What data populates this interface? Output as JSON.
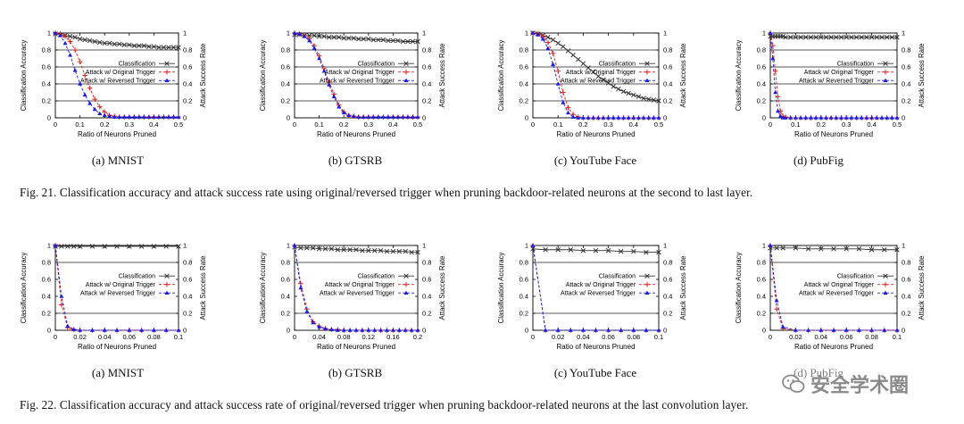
{
  "figures": [
    {
      "caption": "Fig. 21.  Classification accuracy and attack success rate using original/reversed trigger when pruning backdoor-related neurons at the second to last layer.",
      "subcaptions": [
        "(a)  MNIST",
        "(b)  GTSRB",
        "(c)  YouTube Face",
        "(d)  PubFig"
      ]
    },
    {
      "caption": "Fig. 22.  Classification accuracy and attack success rate of original/reversed trigger when pruning backdoor-related neurons at the last convolution layer.",
      "subcaptions": [
        "(a)  MNIST",
        "(b)  GTSRB",
        "(c)  YouTube Face",
        "(d)  PubFig"
      ]
    }
  ],
  "watermark": "安全学术圈",
  "colors": {
    "classification": "#333333",
    "attack_original": "#e02020",
    "attack_reversed": "#1a1ae0",
    "axis": "#000000",
    "grid": "#222222"
  },
  "chart_data": [
    {
      "type": "line",
      "xlabel": "Ratio of Neurons Pruned",
      "ylabel": "Classification Accuracy",
      "y2label": "Attack Success Rate",
      "xlim": [
        0,
        0.5
      ],
      "ylim": [
        0,
        1
      ],
      "xticks": [
        "0",
        "0.1",
        "0.2",
        "0.3",
        "0.4",
        "0.5"
      ],
      "yticks": [
        "0",
        "0.2",
        "0.4",
        "0.6",
        "0.8",
        "1"
      ],
      "grid_y": [
        0.2,
        0.4,
        0.6,
        0.8
      ],
      "legend_position": "right",
      "x": [
        0,
        0.02,
        0.04,
        0.06,
        0.08,
        0.1,
        0.12,
        0.14,
        0.16,
        0.18,
        0.2,
        0.22,
        0.24,
        0.26,
        0.28,
        0.3,
        0.32,
        0.34,
        0.36,
        0.38,
        0.4,
        0.42,
        0.44,
        0.46,
        0.48,
        0.5
      ],
      "series": [
        {
          "name": "Classification",
          "values": [
            0.99,
            0.98,
            0.97,
            0.96,
            0.95,
            0.93,
            0.92,
            0.91,
            0.9,
            0.89,
            0.88,
            0.88,
            0.87,
            0.87,
            0.86,
            0.86,
            0.85,
            0.85,
            0.85,
            0.84,
            0.84,
            0.83,
            0.83,
            0.83,
            0.83,
            0.83
          ]
        },
        {
          "name": "Attack w/ Original Trigger",
          "values": [
            1.0,
            0.99,
            0.96,
            0.9,
            0.8,
            0.66,
            0.5,
            0.35,
            0.22,
            0.13,
            0.07,
            0.03,
            0.02,
            0.01,
            0.01,
            0.01,
            0.01,
            0.01,
            0.01,
            0.01,
            0.01,
            0.01,
            0.01,
            0.01,
            0.01,
            0.01
          ]
        },
        {
          "name": "Attack w/ Reversed Trigger",
          "values": [
            1.0,
            0.97,
            0.88,
            0.74,
            0.56,
            0.4,
            0.27,
            0.17,
            0.1,
            0.05,
            0.03,
            0.02,
            0.01,
            0.01,
            0.01,
            0.01,
            0.01,
            0.01,
            0.01,
            0.01,
            0.01,
            0.01,
            0.01,
            0.01,
            0.01,
            0.01
          ]
        }
      ]
    },
    {
      "type": "line",
      "xlabel": "Ratio of Neurons Pruned",
      "ylabel": "Classification Accuracy",
      "y2label": "Attack Success Rate",
      "xlim": [
        0,
        0.5
      ],
      "ylim": [
        0,
        1
      ],
      "xticks": [
        "0",
        "0.1",
        "0.2",
        "0.3",
        "0.4",
        "0.5"
      ],
      "yticks": [
        "0",
        "0.2",
        "0.4",
        "0.6",
        "0.8",
        "1"
      ],
      "grid_y": [
        0.2,
        0.4,
        0.6,
        0.8
      ],
      "legend_position": "right",
      "x": [
        0,
        0.02,
        0.04,
        0.06,
        0.08,
        0.1,
        0.12,
        0.14,
        0.16,
        0.18,
        0.2,
        0.22,
        0.24,
        0.26,
        0.28,
        0.3,
        0.32,
        0.34,
        0.36,
        0.38,
        0.4,
        0.42,
        0.44,
        0.46,
        0.48,
        0.5
      ],
      "series": [
        {
          "name": "Classification",
          "values": [
            0.98,
            0.98,
            0.97,
            0.97,
            0.97,
            0.96,
            0.96,
            0.95,
            0.95,
            0.95,
            0.94,
            0.94,
            0.94,
            0.93,
            0.93,
            0.93,
            0.92,
            0.92,
            0.92,
            0.91,
            0.91,
            0.91,
            0.9,
            0.9,
            0.9,
            0.9
          ]
        },
        {
          "name": "Attack w/ Original Trigger",
          "values": [
            1.0,
            0.99,
            0.97,
            0.93,
            0.85,
            0.73,
            0.58,
            0.42,
            0.28,
            0.15,
            0.07,
            0.03,
            0.02,
            0.01,
            0.01,
            0.01,
            0.01,
            0.01,
            0.01,
            0.01,
            0.01,
            0.01,
            0.01,
            0.01,
            0.01,
            0.01
          ]
        },
        {
          "name": "Attack w/ Reversed Trigger",
          "values": [
            1.0,
            0.99,
            0.96,
            0.91,
            0.82,
            0.7,
            0.55,
            0.39,
            0.25,
            0.13,
            0.06,
            0.03,
            0.02,
            0.01,
            0.01,
            0.01,
            0.01,
            0.01,
            0.01,
            0.01,
            0.01,
            0.01,
            0.01,
            0.01,
            0.01,
            0.01
          ]
        }
      ]
    },
    {
      "type": "line",
      "xlabel": "Ratio of Neurons Pruned",
      "ylabel": "Classification Accuracy",
      "y2label": "Attack Success Rate",
      "xlim": [
        0,
        0.5
      ],
      "ylim": [
        0,
        1
      ],
      "xticks": [
        "0",
        "0.1",
        "0.2",
        "0.3",
        "0.4",
        "0.5"
      ],
      "yticks": [
        "0",
        "0.2",
        "0.4",
        "0.6",
        "0.8",
        "1"
      ],
      "grid_y": [
        0.2,
        0.4,
        0.6,
        0.8
      ],
      "legend_position": "right",
      "x": [
        0,
        0.02,
        0.04,
        0.06,
        0.08,
        0.1,
        0.12,
        0.14,
        0.16,
        0.18,
        0.2,
        0.22,
        0.24,
        0.26,
        0.28,
        0.3,
        0.32,
        0.34,
        0.36,
        0.38,
        0.4,
        0.42,
        0.44,
        0.46,
        0.48,
        0.5
      ],
      "series": [
        {
          "name": "Classification",
          "values": [
            1.0,
            0.99,
            0.97,
            0.95,
            0.92,
            0.88,
            0.84,
            0.79,
            0.74,
            0.69,
            0.64,
            0.59,
            0.54,
            0.49,
            0.45,
            0.41,
            0.37,
            0.34,
            0.31,
            0.29,
            0.27,
            0.25,
            0.23,
            0.22,
            0.21,
            0.2
          ]
        },
        {
          "name": "Attack w/ Original Trigger",
          "values": [
            1.0,
            0.99,
            0.96,
            0.89,
            0.76,
            0.55,
            0.3,
            0.12,
            0.04,
            0.01,
            0.0,
            0.0,
            0.0,
            0.0,
            0.0,
            0.0,
            0.0,
            0.0,
            0.0,
            0.0,
            0.0,
            0.0,
            0.0,
            0.0,
            0.0,
            0.0
          ]
        },
        {
          "name": "Attack w/ Reversed Trigger",
          "values": [
            1.0,
            0.98,
            0.93,
            0.82,
            0.63,
            0.4,
            0.18,
            0.06,
            0.01,
            0.0,
            0.0,
            0.0,
            0.0,
            0.0,
            0.0,
            0.0,
            0.0,
            0.0,
            0.0,
            0.0,
            0.0,
            0.0,
            0.0,
            0.0,
            0.0,
            0.0
          ]
        }
      ]
    },
    {
      "type": "line",
      "xlabel": "Ratio of Neurons Pruned",
      "ylabel": "Classification Accuracy",
      "y2label": "Attack Success Rate",
      "xlim": [
        0,
        0.5
      ],
      "ylim": [
        0,
        1
      ],
      "xticks": [
        "0",
        "0.1",
        "0.2",
        "0.3",
        "0.4",
        "0.5"
      ],
      "yticks": [
        "0",
        "0.2",
        "0.4",
        "0.6",
        "0.8",
        "1"
      ],
      "grid_y": [
        0.2,
        0.4,
        0.6,
        0.8
      ],
      "legend_position": "right",
      "x": [
        0,
        0.01,
        0.02,
        0.03,
        0.04,
        0.05,
        0.06,
        0.08,
        0.1,
        0.12,
        0.14,
        0.16,
        0.18,
        0.2,
        0.22,
        0.24,
        0.26,
        0.28,
        0.3,
        0.32,
        0.34,
        0.36,
        0.38,
        0.4,
        0.42,
        0.44,
        0.46,
        0.48,
        0.5
      ],
      "series": [
        {
          "name": "Classification",
          "values": [
            0.96,
            0.96,
            0.96,
            0.96,
            0.96,
            0.96,
            0.95,
            0.95,
            0.95,
            0.95,
            0.95,
            0.95,
            0.95,
            0.95,
            0.95,
            0.95,
            0.95,
            0.95,
            0.95,
            0.95,
            0.95,
            0.95,
            0.95,
            0.95,
            0.95,
            0.95,
            0.95,
            0.95,
            0.95
          ]
        },
        {
          "name": "Attack w/ Original Trigger",
          "values": [
            1.0,
            0.85,
            0.55,
            0.25,
            0.08,
            0.02,
            0.01,
            0.0,
            0.0,
            0.0,
            0.0,
            0.0,
            0.0,
            0.0,
            0.0,
            0.0,
            0.0,
            0.0,
            0.0,
            0.0,
            0.0,
            0.0,
            0.0,
            0.0,
            0.0,
            0.0,
            0.0,
            0.0,
            0.0
          ]
        },
        {
          "name": "Attack w/ Reversed Trigger",
          "values": [
            1.0,
            0.7,
            0.3,
            0.08,
            0.02,
            0.0,
            0.0,
            0.0,
            0.0,
            0.0,
            0.0,
            0.0,
            0.0,
            0.0,
            0.0,
            0.0,
            0.0,
            0.0,
            0.0,
            0.0,
            0.0,
            0.0,
            0.0,
            0.0,
            0.0,
            0.0,
            0.0,
            0.0,
            0.0
          ]
        }
      ]
    },
    {
      "type": "line",
      "xlabel": "Ratio of Neurons Pruned",
      "ylabel": "Classification Accuracy",
      "y2label": "Attack Success Rate",
      "xlim": [
        0,
        0.1
      ],
      "ylim": [
        0,
        1
      ],
      "xticks": [
        "0",
        "0.02",
        "0.04",
        "0.06",
        "0.08",
        "0.1"
      ],
      "yticks": [
        "0",
        "0.2",
        "0.4",
        "0.6",
        "0.8",
        "1"
      ],
      "grid_y": [
        0.2,
        0.8
      ],
      "legend_position": "right",
      "x": [
        0,
        0.005,
        0.01,
        0.015,
        0.02,
        0.03,
        0.04,
        0.05,
        0.06,
        0.07,
        0.08,
        0.09,
        0.1
      ],
      "series": [
        {
          "name": "Classification",
          "values": [
            0.99,
            0.99,
            0.99,
            0.99,
            0.99,
            0.99,
            0.99,
            0.99,
            0.99,
            0.99,
            0.99,
            0.99,
            0.99
          ]
        },
        {
          "name": "Attack w/ Original Trigger",
          "values": [
            1.0,
            0.3,
            0.03,
            0.01,
            0.0,
            0.0,
            0.0,
            0.0,
            0.0,
            0.0,
            0.0,
            0.0,
            0.0
          ]
        },
        {
          "name": "Attack w/ Reversed Trigger",
          "values": [
            1.0,
            0.4,
            0.05,
            0.01,
            0.0,
            0.0,
            0.0,
            0.0,
            0.0,
            0.0,
            0.0,
            0.0,
            0.0
          ]
        }
      ]
    },
    {
      "type": "line",
      "xlabel": "Ratio of Neurons Pruned",
      "ylabel": "Classification Accuracy",
      "y2label": "Attack Success Rate",
      "xlim": [
        0,
        0.2
      ],
      "ylim": [
        0,
        1
      ],
      "xticks": [
        "0",
        "0.04",
        "0.08",
        "0.12",
        "0.16",
        "0.2"
      ],
      "yticks": [
        "0",
        "0.2",
        "0.4",
        "0.6",
        "0.8",
        "1"
      ],
      "grid_y": [
        0.2,
        0.8
      ],
      "legend_position": "right",
      "x": [
        0,
        0.01,
        0.02,
        0.03,
        0.04,
        0.05,
        0.06,
        0.07,
        0.08,
        0.09,
        0.1,
        0.11,
        0.12,
        0.13,
        0.14,
        0.15,
        0.16,
        0.17,
        0.18,
        0.19,
        0.2
      ],
      "series": [
        {
          "name": "Classification",
          "values": [
            0.98,
            0.97,
            0.97,
            0.97,
            0.96,
            0.96,
            0.96,
            0.95,
            0.95,
            0.95,
            0.95,
            0.94,
            0.94,
            0.94,
            0.94,
            0.93,
            0.93,
            0.93,
            0.93,
            0.92,
            0.92
          ]
        },
        {
          "name": "Attack w/ Original Trigger",
          "values": [
            1.0,
            0.55,
            0.25,
            0.1,
            0.05,
            0.02,
            0.01,
            0.01,
            0.0,
            0.0,
            0.0,
            0.0,
            0.0,
            0.0,
            0.0,
            0.0,
            0.0,
            0.0,
            0.0,
            0.0,
            0.0
          ]
        },
        {
          "name": "Attack w/ Reversed Trigger",
          "values": [
            1.0,
            0.5,
            0.22,
            0.09,
            0.04,
            0.02,
            0.01,
            0.0,
            0.0,
            0.0,
            0.0,
            0.0,
            0.0,
            0.0,
            0.0,
            0.0,
            0.0,
            0.0,
            0.0,
            0.0,
            0.0
          ]
        }
      ]
    },
    {
      "type": "line",
      "xlabel": "Ratio of Neurons Pruned",
      "ylabel": "Classification Accuracy",
      "y2label": "Attack Success Rate",
      "xlim": [
        0,
        0.1
      ],
      "ylim": [
        0,
        1
      ],
      "xticks": [
        "0",
        "0.02",
        "0.04",
        "0.06",
        "0.08",
        "0.1"
      ],
      "yticks": [
        "0",
        "0.2",
        "0.4",
        "0.6",
        "0.8",
        "1"
      ],
      "grid_y": [
        0.2,
        0.8
      ],
      "legend_position": "right",
      "x": [
        0,
        0.01,
        0.02,
        0.03,
        0.04,
        0.05,
        0.06,
        0.07,
        0.08,
        0.09,
        0.1
      ],
      "series": [
        {
          "name": "Classification",
          "values": [
            0.96,
            0.95,
            0.95,
            0.95,
            0.94,
            0.94,
            0.94,
            0.93,
            0.93,
            0.92,
            0.92
          ]
        },
        {
          "name": "Attack w/ Original Trigger",
          "values": [
            1.0,
            0.0,
            0.0,
            0.0,
            0.0,
            0.0,
            0.0,
            0.0,
            0.0,
            0.0,
            0.0
          ]
        },
        {
          "name": "Attack w/ Reversed Trigger",
          "values": [
            1.0,
            0.0,
            0.0,
            0.0,
            0.0,
            0.0,
            0.0,
            0.0,
            0.0,
            0.0,
            0.0
          ]
        }
      ]
    },
    {
      "type": "line",
      "xlabel": "Ratio of Neurons Pruned",
      "ylabel": "Classification Accuracy",
      "y2label": "Attack Success Rate",
      "xlim": [
        0,
        0.1
      ],
      "ylim": [
        0,
        1
      ],
      "xticks": [
        "0",
        "0.02",
        "0.04",
        "0.06",
        "0.08",
        "0.1"
      ],
      "yticks": [
        "0",
        "0.2",
        "0.4",
        "0.6",
        "0.8",
        "1"
      ],
      "grid_y": [
        0.2,
        0.8
      ],
      "legend_position": "right",
      "x": [
        0,
        0.005,
        0.01,
        0.02,
        0.03,
        0.04,
        0.05,
        0.06,
        0.07,
        0.08,
        0.09,
        0.1
      ],
      "series": [
        {
          "name": "Classification",
          "values": [
            0.97,
            0.97,
            0.97,
            0.97,
            0.96,
            0.96,
            0.96,
            0.96,
            0.96,
            0.95,
            0.95,
            0.95
          ]
        },
        {
          "name": "Attack w/ Original Trigger",
          "values": [
            1.0,
            0.25,
            0.02,
            0.0,
            0.0,
            0.0,
            0.0,
            0.0,
            0.0,
            0.0,
            0.0,
            0.0
          ]
        },
        {
          "name": "Attack w/ Reversed Trigger",
          "values": [
            1.0,
            0.35,
            0.04,
            0.0,
            0.0,
            0.0,
            0.0,
            0.0,
            0.0,
            0.0,
            0.0,
            0.0
          ]
        }
      ]
    }
  ]
}
